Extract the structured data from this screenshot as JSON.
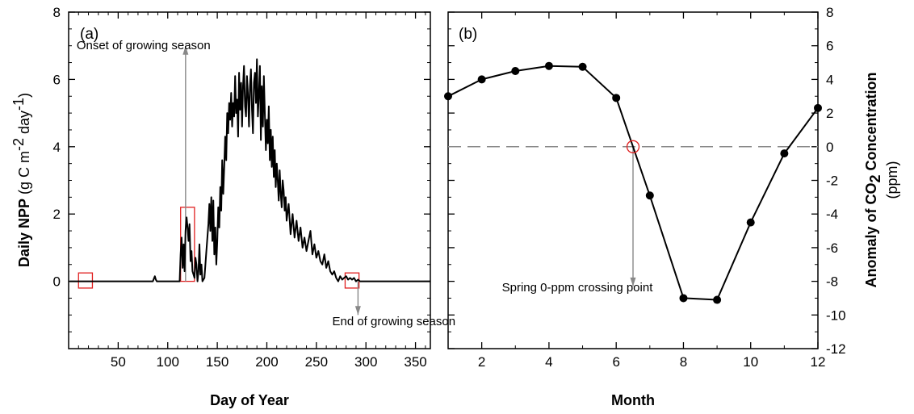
{
  "chart_data": [
    {
      "type": "line",
      "panel_label": "(a)",
      "ylabel_bold": "Daily NPP",
      "ylabel_rest": " (g C m",
      "ylabel_sup1": "-2",
      "ylabel_mid": " day",
      "ylabel_sup2": "-1",
      "ylabel_end": ")",
      "xlabel": "Day of Year",
      "xlim": [
        0,
        365
      ],
      "ylim": [
        -2,
        8
      ],
      "xticks": [
        50,
        100,
        150,
        200,
        250,
        300,
        350
      ],
      "yticks": [
        0,
        2,
        4,
        6,
        8
      ],
      "series": [
        {
          "x": [
            1,
            85,
            87,
            88,
            89,
            90,
            112,
            113,
            114,
            115,
            116,
            117,
            118,
            119,
            120,
            121,
            122,
            123,
            124,
            125,
            126,
            127,
            128,
            129,
            130,
            131,
            132,
            133,
            134,
            135,
            137,
            139,
            141,
            142,
            143,
            144,
            145,
            146,
            147,
            148,
            149,
            150,
            151,
            152,
            153,
            154,
            155,
            156,
            157,
            158,
            159,
            160,
            161,
            162,
            163,
            164,
            165,
            166,
            167,
            168,
            169,
            170,
            171,
            172,
            173,
            174,
            175,
            176,
            177,
            178,
            179,
            180,
            181,
            182,
            183,
            184,
            185,
            186,
            187,
            188,
            189,
            190,
            191,
            192,
            193,
            194,
            195,
            196,
            197,
            198,
            199,
            200,
            201,
            202,
            203,
            204,
            205,
            206,
            207,
            208,
            209,
            210,
            211,
            212,
            213,
            214,
            215,
            216,
            217,
            218,
            219,
            220,
            222,
            224,
            226,
            228,
            230,
            232,
            234,
            236,
            238,
            240,
            242,
            244,
            246,
            248,
            250,
            252,
            254,
            256,
            258,
            260,
            262,
            264,
            266,
            268,
            270,
            272,
            274,
            276,
            278,
            280,
            282,
            284,
            286,
            288,
            290,
            292,
            294,
            296,
            365
          ],
          "y": [
            0,
            0,
            0.15,
            0.05,
            0,
            0,
            0,
            0.8,
            1.3,
            0.4,
            1.1,
            0.3,
            1.5,
            1.9,
            1.6,
            1.2,
            1.7,
            0.6,
            0.9,
            0.3,
            0.2,
            0.1,
            0.7,
            0.5,
            0,
            0.3,
            1.1,
            0.2,
            0.5,
            0,
            0.1,
            0.9,
            1.7,
            2.3,
            1.5,
            2.5,
            1.2,
            2.4,
            0.8,
            1.6,
            0.5,
            1.2,
            2.2,
            1.6,
            2.8,
            2.1,
            3.6,
            2.6,
            3.4,
            4.3,
            3.6,
            5.0,
            4.4,
            5.3,
            4.8,
            5.6,
            4.6,
            5.3,
            4.9,
            6.1,
            5.0,
            5.4,
            4.3,
            6.2,
            5.1,
            5.9,
            4.6,
            5.8,
            6.4,
            5.2,
            4.9,
            6.1,
            5.5,
            4.6,
            5.8,
            6.3,
            5.1,
            4.4,
            5.9,
            6.2,
            5.3,
            6.6,
            4.9,
            5.6,
            6.4,
            4.2,
            5.8,
            4.6,
            6.1,
            5.0,
            3.9,
            4.8,
            4.1,
            5.2,
            3.6,
            4.5,
            3.4,
            4.3,
            3.1,
            3.9,
            2.8,
            3.5,
            3.0,
            2.4,
            3.3,
            2.6,
            2.2,
            3.0,
            2.7,
            2.1,
            2.5,
            1.8,
            2.3,
            1.4,
            2.0,
            1.3,
            1.8,
            1.2,
            1.6,
            1.0,
            1.3,
            0.9,
            1.2,
            1.5,
            0.8,
            1.1,
            0.7,
            0.9,
            0.6,
            0.5,
            0.8,
            0.4,
            0.6,
            0.3,
            0.2,
            0.3,
            0.1,
            0,
            0.15,
            0.05,
            0.1,
            0.15,
            0.05,
            0.1,
            0.05,
            0.1,
            0,
            0.05,
            0,
            0,
            0
          ]
        }
      ],
      "annotations": [
        {
          "text": "Onset of growing season",
          "x": 8,
          "y": 6.9
        },
        {
          "text": "End of growing season",
          "x": 266,
          "y": -1.3
        }
      ],
      "arrows": [
        {
          "x": 118,
          "y_from": 0,
          "y_to": 7.0
        },
        {
          "x": 292,
          "y_from": 0,
          "y_to": -1.0
        }
      ],
      "highlight_boxes": [
        {
          "x0": 10,
          "x1": 24,
          "y0": -0.2,
          "y1": 0.25
        },
        {
          "x0": 113,
          "x1": 127,
          "y0": 0,
          "y1": 2.2
        },
        {
          "x0": 279,
          "x1": 293,
          "y0": -0.2,
          "y1": 0.25
        }
      ],
      "colors": {
        "line": "#000000",
        "arrow": "#888888",
        "box": "#e02020"
      }
    },
    {
      "type": "line",
      "panel_label": "(b)",
      "ylabel_bold_pre": "Anomaly of CO",
      "ylabel_sub": "2",
      "ylabel_bold_post": " Concentration",
      "ylabel_units": "(ppm)",
      "xlabel": "Month",
      "xlim": [
        1,
        12
      ],
      "ylim": [
        -12,
        8
      ],
      "xticks": [
        2,
        4,
        6,
        8,
        10,
        12
      ],
      "yticks": [
        -12,
        -10,
        -8,
        -6,
        -4,
        -2,
        0,
        2,
        4,
        6,
        8
      ],
      "series": [
        {
          "x": [
            1,
            2,
            3,
            4,
            5,
            6,
            7,
            8,
            9,
            10,
            11,
            12
          ],
          "y": [
            3.0,
            4.0,
            4.5,
            4.8,
            4.75,
            2.9,
            -2.9,
            -9.0,
            -9.1,
            -4.5,
            -0.4,
            2.3
          ]
        }
      ],
      "reference_line": {
        "y": 0,
        "style": "dashed"
      },
      "crossing_point": {
        "x": 6.5,
        "y": 0
      },
      "annotations": [
        {
          "text": "Spring 0-ppm crossing point",
          "x": 2.6,
          "y": -8.6
        }
      ],
      "arrows": [
        {
          "x": 6.5,
          "y_from": 0,
          "y_to": -8.3
        }
      ],
      "colors": {
        "line": "#000000",
        "marker": "#000000",
        "reference": "#888888",
        "crossing": "#e02020",
        "arrow": "#888888"
      }
    }
  ]
}
